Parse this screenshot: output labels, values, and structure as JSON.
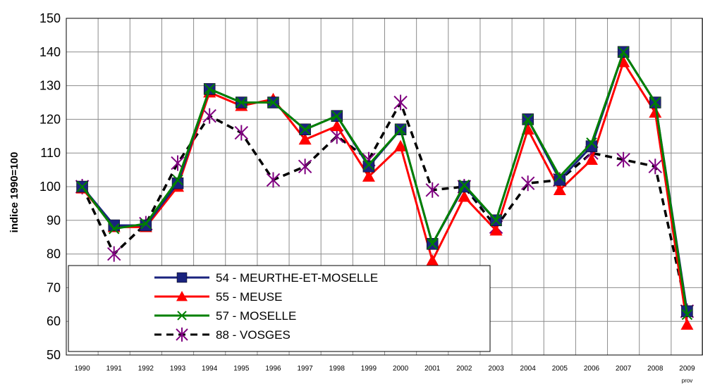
{
  "chart_data": {
    "type": "line",
    "ylabel": "indice 1990=100",
    "xlabel": "",
    "ylim": [
      50,
      150
    ],
    "yticks": [
      50,
      60,
      70,
      80,
      90,
      100,
      110,
      120,
      130,
      140,
      150
    ],
    "grid": true,
    "legend_position": "bottom-left inside plot",
    "categories": [
      "1990",
      "1991",
      "1992",
      "1993",
      "1994",
      "1995",
      "1996",
      "1997",
      "1998",
      "1999",
      "2000",
      "2001",
      "2002",
      "2003",
      "2004",
      "2005",
      "2006",
      "2007",
      "2008",
      "2009"
    ],
    "category_sublabels": {
      "2009": "prov"
    },
    "series": [
      {
        "name": "54 - MEURTHE-ET-MOSELLE",
        "color": "#1a237e",
        "marker": "square",
        "dash": "solid",
        "values": [
          100,
          88.5,
          88.5,
          101,
          129,
          125,
          125,
          117,
          121,
          106,
          117,
          83,
          100,
          90,
          120,
          102,
          112,
          140,
          125,
          63
        ]
      },
      {
        "name": "55 - MEUSE",
        "color": "#ff0000",
        "marker": "triangle",
        "dash": "solid",
        "values": [
          99.5,
          88,
          88,
          100,
          128,
          124,
          126,
          114,
          118,
          103,
          112,
          78,
          97,
          87,
          117,
          99,
          108,
          137,
          122,
          59
        ]
      },
      {
        "name": "57 - MOSELLE",
        "color": "#008000",
        "marker": "x",
        "dash": "solid",
        "values": [
          100,
          87.5,
          89,
          102,
          129,
          125,
          125,
          117,
          121,
          106.5,
          117,
          83,
          100.5,
          90,
          120,
          103,
          113,
          140,
          125,
          62
        ]
      },
      {
        "name": "88 - VOSGES",
        "color": "#000000",
        "marker_color": "#800080",
        "marker": "asterisk",
        "dash": "dashed",
        "values": [
          100,
          80,
          89,
          107,
          121,
          116,
          102,
          106,
          115,
          108,
          125,
          99,
          100,
          88,
          101,
          102,
          110,
          108,
          106,
          63
        ]
      }
    ]
  }
}
